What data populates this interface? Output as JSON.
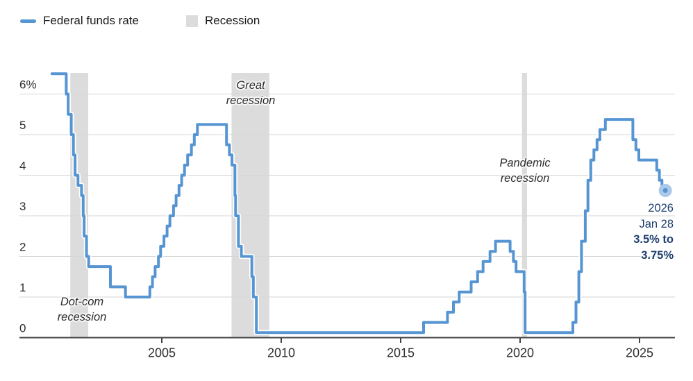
{
  "legend": {
    "series_label": "Federal funds rate",
    "recession_label": "Recession"
  },
  "colors": {
    "line": "#5695d2",
    "dot_outer": "#a9c8ea",
    "recession_band": "#dcdcdc",
    "gridline": "#d6d6d6",
    "axis": "#424242",
    "tick_text": "#2f2f2f",
    "annotation_navy": "#1d3e6e"
  },
  "chart_data": {
    "type": "line",
    "step": true,
    "title": "",
    "xlabel": "",
    "ylabel": "",
    "x_axis": {
      "ticks": [
        2005,
        2010,
        2015,
        2020,
        2025
      ],
      "tick_labels": [
        "2005",
        "2010",
        "2015",
        "2020",
        "2025"
      ],
      "range": [
        2000.1,
        2026.6
      ]
    },
    "y_axis": {
      "ticks": [
        0,
        1,
        2,
        3,
        4,
        5,
        6
      ],
      "tick_labels": [
        "0",
        "1",
        "2",
        "3",
        "4",
        "5",
        "6%"
      ],
      "range": [
        0,
        6.6
      ],
      "grid": true
    },
    "series": [
      {
        "name": "Federal funds rate",
        "points": [
          [
            2000.4,
            6.5
          ],
          [
            2001.0,
            6.0
          ],
          [
            2001.08,
            5.5
          ],
          [
            2001.21,
            5.0
          ],
          [
            2001.3,
            4.5
          ],
          [
            2001.37,
            4.0
          ],
          [
            2001.49,
            3.75
          ],
          [
            2001.64,
            3.5
          ],
          [
            2001.71,
            3.0
          ],
          [
            2001.75,
            2.5
          ],
          [
            2001.85,
            2.0
          ],
          [
            2001.94,
            1.75
          ],
          [
            2002.85,
            1.25
          ],
          [
            2003.48,
            1.0
          ],
          [
            2004.5,
            1.25
          ],
          [
            2004.61,
            1.5
          ],
          [
            2004.72,
            1.75
          ],
          [
            2004.86,
            2.0
          ],
          [
            2004.95,
            2.25
          ],
          [
            2005.09,
            2.5
          ],
          [
            2005.22,
            2.75
          ],
          [
            2005.34,
            3.0
          ],
          [
            2005.49,
            3.25
          ],
          [
            2005.6,
            3.5
          ],
          [
            2005.72,
            3.75
          ],
          [
            2005.83,
            4.0
          ],
          [
            2005.95,
            4.25
          ],
          [
            2006.08,
            4.5
          ],
          [
            2006.24,
            4.75
          ],
          [
            2006.36,
            5.0
          ],
          [
            2006.49,
            5.25
          ],
          [
            2007.71,
            4.75
          ],
          [
            2007.83,
            4.5
          ],
          [
            2007.94,
            4.25
          ],
          [
            2008.06,
            3.5
          ],
          [
            2008.09,
            3.0
          ],
          [
            2008.21,
            2.25
          ],
          [
            2008.33,
            2.0
          ],
          [
            2008.77,
            1.5
          ],
          [
            2008.83,
            1.0
          ],
          [
            2008.96,
            0.125
          ],
          [
            2015.96,
            0.375
          ],
          [
            2016.96,
            0.625
          ],
          [
            2017.21,
            0.875
          ],
          [
            2017.45,
            1.125
          ],
          [
            2017.95,
            1.375
          ],
          [
            2018.22,
            1.625
          ],
          [
            2018.45,
            1.875
          ],
          [
            2018.74,
            2.125
          ],
          [
            2018.97,
            2.375
          ],
          [
            2019.58,
            2.125
          ],
          [
            2019.72,
            1.875
          ],
          [
            2019.83,
            1.625
          ],
          [
            2020.17,
            1.125
          ],
          [
            2020.21,
            0.125
          ],
          [
            2022.21,
            0.375
          ],
          [
            2022.34,
            0.875
          ],
          [
            2022.46,
            1.625
          ],
          [
            2022.57,
            2.375
          ],
          [
            2022.73,
            3.125
          ],
          [
            2022.84,
            3.875
          ],
          [
            2022.96,
            4.375
          ],
          [
            2023.09,
            4.625
          ],
          [
            2023.22,
            4.875
          ],
          [
            2023.34,
            5.125
          ],
          [
            2023.57,
            5.375
          ],
          [
            2024.72,
            4.875
          ],
          [
            2024.85,
            4.625
          ],
          [
            2024.97,
            4.375
          ],
          [
            2025.72,
            4.125
          ],
          [
            2025.83,
            3.875
          ],
          [
            2025.94,
            3.625
          ]
        ],
        "end_x": 2026.08,
        "end_value": 3.625
      }
    ],
    "recessions": [
      {
        "name": "Dot-com recession",
        "start": 2001.17,
        "end": 2001.92
      },
      {
        "name": "Great recession",
        "start": 2007.92,
        "end": 2009.5
      },
      {
        "name": "Pandemic recession",
        "start": 2020.08,
        "end": 2020.29
      }
    ],
    "annotations": {
      "dotcom": {
        "lines": [
          "Dot-com",
          "recession"
        ]
      },
      "great": {
        "lines": [
          "Great",
          "recession"
        ]
      },
      "pandemic": {
        "lines": [
          "Pandemic",
          "recession"
        ]
      },
      "endpoint": {
        "lines": [
          "2026",
          "Jan 28",
          "3.5% to",
          "3.75%"
        ]
      }
    }
  }
}
